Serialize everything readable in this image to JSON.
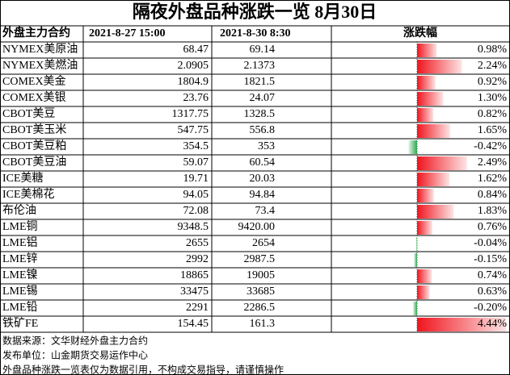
{
  "title": "隔夜外盘品种涨跌一览 8月30日",
  "header": [
    "外盘主力合约",
    "2021-8-27 15:00",
    "2021-8-30 8:30",
    "涨跌幅"
  ],
  "rows": [
    {
      "name": "NYMEX美原油",
      "prev": "68.47",
      "curr": "69.14",
      "change": 0.98,
      "change_label": "0.98%"
    },
    {
      "name": "NYMEX美燃油",
      "prev": "2.0905",
      "curr": "2.1373",
      "change": 2.24,
      "change_label": "2.24%"
    },
    {
      "name": "COMEX美金",
      "prev": "1804.9",
      "curr": "1821.5",
      "change": 0.92,
      "change_label": "0.92%"
    },
    {
      "name": "COMEX美银",
      "prev": "23.76",
      "curr": "24.07",
      "change": 1.3,
      "change_label": "1.30%"
    },
    {
      "name": "CBOT美豆",
      "prev": "1317.75",
      "curr": "1328.5",
      "change": 0.82,
      "change_label": "0.82%"
    },
    {
      "name": "CBOT美玉米",
      "prev": "547.75",
      "curr": "556.8",
      "change": 1.65,
      "change_label": "1.65%"
    },
    {
      "name": "CBOT美豆粕",
      "prev": "354.5",
      "curr": "353",
      "change": -0.42,
      "change_label": "-0.42%"
    },
    {
      "name": "CBOT美豆油",
      "prev": "59.07",
      "curr": "60.54",
      "change": 2.49,
      "change_label": "2.49%"
    },
    {
      "name": "ICE美糖",
      "prev": "19.71",
      "curr": "20.03",
      "change": 1.62,
      "change_label": "1.62%"
    },
    {
      "name": "ICE美棉花",
      "prev": "94.05",
      "curr": "94.84",
      "change": 0.84,
      "change_label": "0.84%"
    },
    {
      "name": "布伦油",
      "prev": "72.08",
      "curr": "73.4",
      "change": 1.83,
      "change_label": "1.83%"
    },
    {
      "name": "LME铜",
      "prev": "9348.5",
      "curr": "9420.00",
      "change": 0.76,
      "change_label": "0.76%"
    },
    {
      "name": "LME铝",
      "prev": "2655",
      "curr": "2654",
      "change": -0.04,
      "change_label": "-0.04%"
    },
    {
      "name": "LME锌",
      "prev": "2992",
      "curr": "2987.5",
      "change": -0.15,
      "change_label": "-0.15%"
    },
    {
      "name": "LME镍",
      "prev": "18865",
      "curr": "19005",
      "change": 0.74,
      "change_label": "0.74%"
    },
    {
      "name": "LME锡",
      "prev": "33475",
      "curr": "33685",
      "change": 0.63,
      "change_label": "0.63%"
    },
    {
      "name": "LME铅",
      "prev": "2291",
      "curr": "2286.5",
      "change": -0.2,
      "change_label": "-0.20%"
    },
    {
      "name": "铁矿FE",
      "prev": "154.45",
      "curr": "161.3",
      "change": 4.44,
      "change_label": "4.44%"
    }
  ],
  "footer": [
    "数据来源：文华财经外盘主力合约",
    "发布单位：山金期货交易运作中心",
    "外盘品种涨跌一览表仅为数据引用，不构成交易指导，请谨慎操作"
  ]
}
